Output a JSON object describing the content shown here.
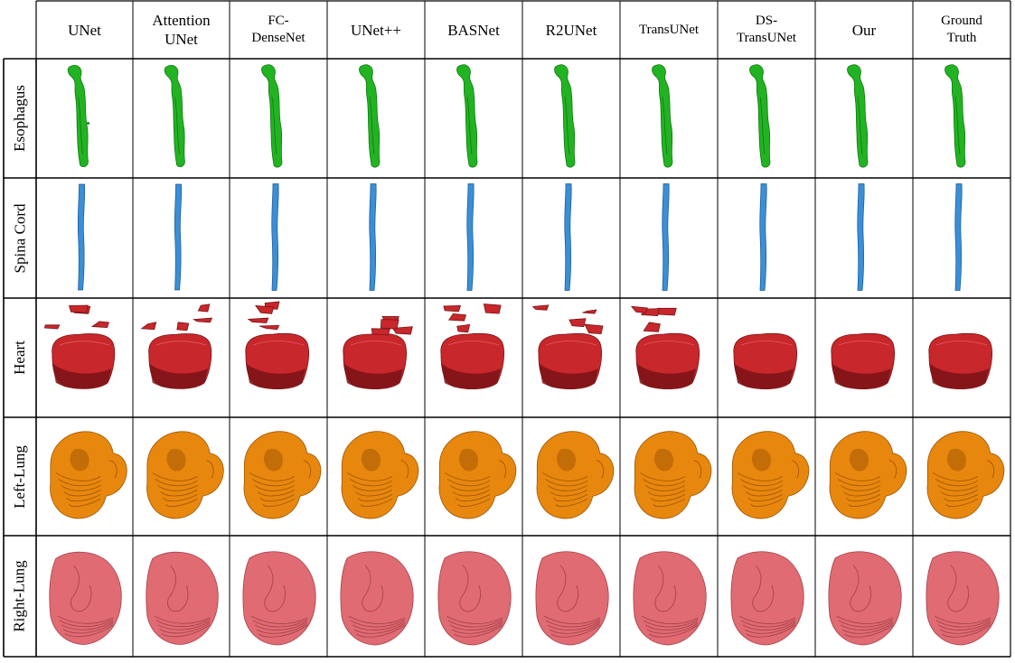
{
  "columns": [
    "UNet",
    "Attention\nUNet",
    "FC-\nDenseNet",
    "UNet++",
    "BASNet",
    "R2UNet",
    "TransUNet",
    "DS-\nTransUNet",
    "Our",
    "Ground\nTruth"
  ],
  "rows": [
    {
      "label": "Esophagus",
      "shape": "esophagus",
      "fill": "#22b322",
      "dark": "#0f7a0f"
    },
    {
      "label": "Spina Cord",
      "shape": "cord",
      "fill": "#3a8fd6",
      "dark": "#1f5f9c"
    },
    {
      "label": "Heart",
      "shape": "heart",
      "fill": "#c8272c",
      "dark": "#7a1316"
    },
    {
      "label": "Left-Lung",
      "shape": "leftlung",
      "fill": "#e8870e",
      "dark": "#9c5400"
    },
    {
      "label": "Right-Lung",
      "shape": "rightlung",
      "fill": "#e06b73",
      "dark": "#a33f47"
    }
  ]
}
